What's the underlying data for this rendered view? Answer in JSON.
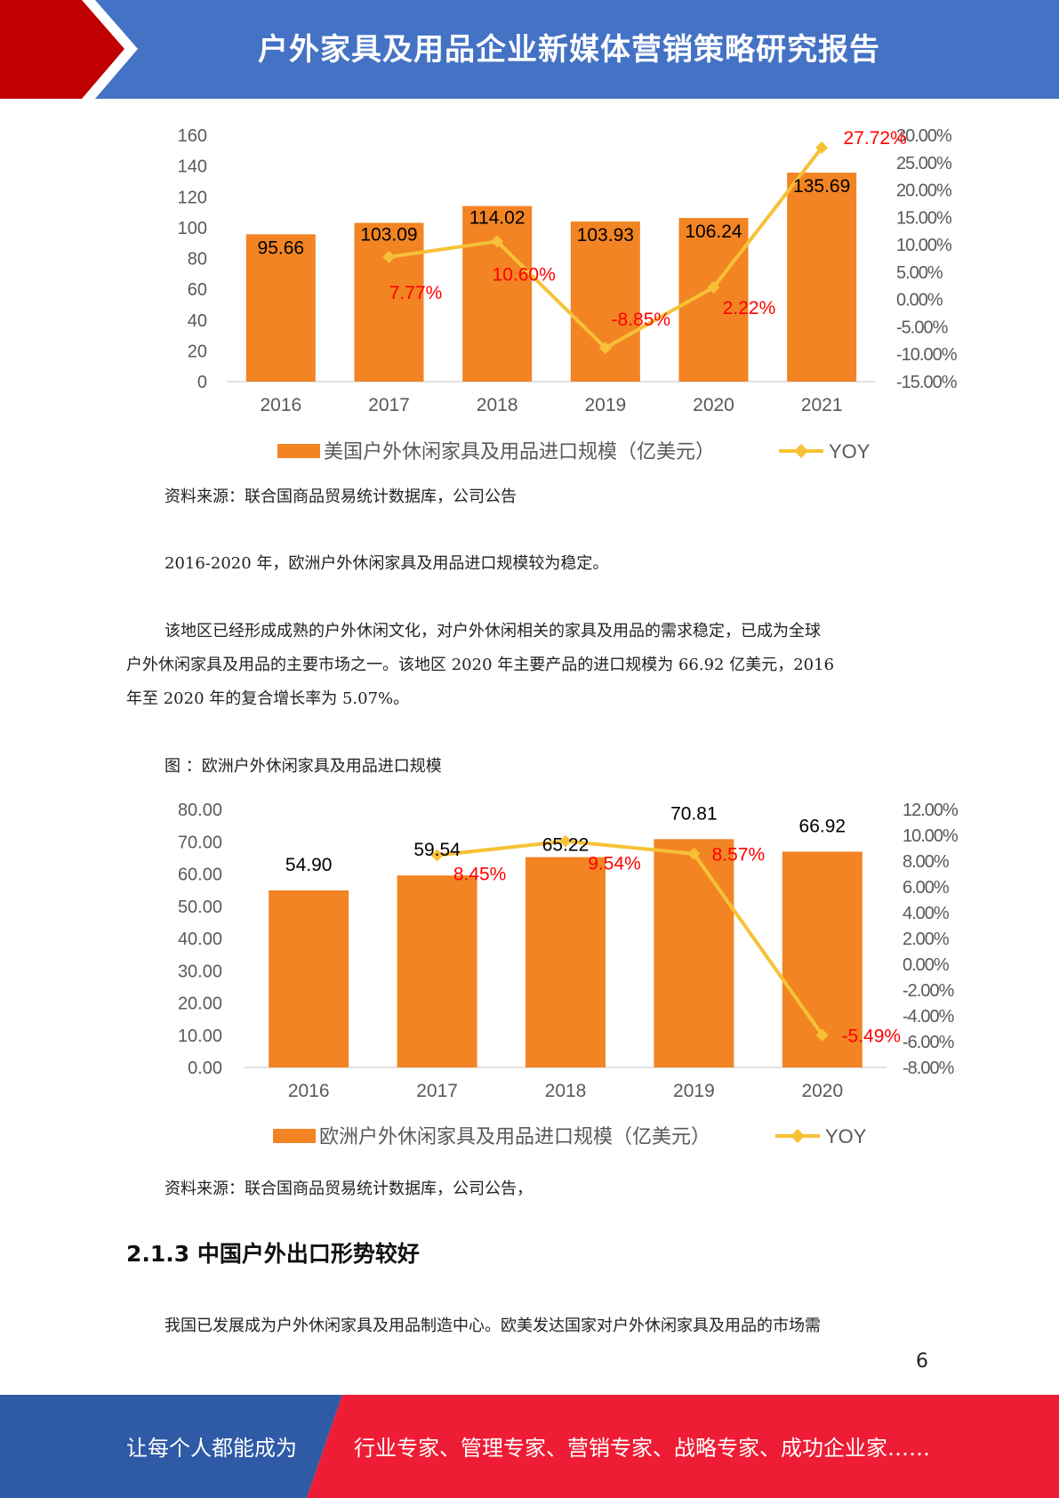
{
  "header": {
    "title": "户外家具及用品企业新媒体营销策略研究报告"
  },
  "colors": {
    "header_blue": "#4472c4",
    "header_red": "#c00000",
    "bar": "#f28424",
    "line": "#f7c137",
    "label_red": "#ff0000",
    "footer_blue": "#2e5aa6",
    "footer_red": "#ee1c35"
  },
  "chart_data": [
    {
      "type": "bar",
      "categories": [
        "2016",
        "2017",
        "2018",
        "2019",
        "2020",
        "2021"
      ],
      "series": [
        {
          "name": "美国户外休闲家具及用品进口规模（亿美元）",
          "values": [
            95.66,
            103.09,
            114.02,
            103.93,
            106.24,
            135.69
          ],
          "axis": "left"
        },
        {
          "name": "YOY",
          "type": "line",
          "values": [
            null,
            7.77,
            10.6,
            -8.85,
            2.22,
            27.72
          ],
          "axis": "right",
          "unit": "%"
        }
      ],
      "bar_labels": [
        "95.66",
        "103.09",
        "114.02",
        "103.93",
        "106.24",
        "135.69"
      ],
      "line_labels": [
        "",
        "7.77%",
        "10.60%",
        "-8.85%",
        "2.22%",
        "27.72%"
      ],
      "left_ticks": [
        "0",
        "20",
        "40",
        "60",
        "80",
        "100",
        "120",
        "140",
        "160"
      ],
      "right_ticks": [
        "-15.00%",
        "-10.00%",
        "-5.00%",
        "0.00%",
        "5.00%",
        "10.00%",
        "15.00%",
        "20.00%",
        "25.00%",
        "30.00%"
      ],
      "ylim": [
        0,
        160
      ],
      "y2lim": [
        -15,
        30
      ],
      "legend_position": "bottom",
      "grid": false
    },
    {
      "type": "bar",
      "categories": [
        "2016",
        "2017",
        "2018",
        "2019",
        "2020"
      ],
      "series": [
        {
          "name": "欧洲户外休闲家具及用品进口规模（亿美元）",
          "values": [
            54.9,
            59.54,
            65.22,
            70.81,
            66.92
          ],
          "axis": "left"
        },
        {
          "name": "YOY",
          "type": "line",
          "values": [
            null,
            8.45,
            9.54,
            8.57,
            -5.49
          ],
          "axis": "right",
          "unit": "%"
        }
      ],
      "bar_labels": [
        "54.90",
        "59.54",
        "65.22",
        "70.81",
        "66.92"
      ],
      "line_labels": [
        "",
        "8.45%",
        "9.54%",
        "8.57%",
        "-5.49%"
      ],
      "left_ticks": [
        "0.00",
        "10.00",
        "20.00",
        "30.00",
        "40.00",
        "50.00",
        "60.00",
        "70.00",
        "80.00"
      ],
      "right_ticks": [
        "-8.00%",
        "-6.00%",
        "-4.00%",
        "-2.00%",
        "0.00%",
        "2.00%",
        "4.00%",
        "6.00%",
        "8.00%",
        "10.00%",
        "12.00%"
      ],
      "ylim": [
        0,
        80
      ],
      "y2lim": [
        -8,
        12
      ],
      "legend_position": "bottom",
      "grid": false
    }
  ],
  "body": {
    "source1": "资料来源：联合国商品贸易统计数据库，公司公告",
    "summary": "2016-2020 年，欧洲户外休闲家具及用品进口规模较为稳定。",
    "para1_line1": "该地区已经形成成熟的户外休闲文化，对户外休闲相关的家具及用品的需求稳定，已成为全球",
    "para1_line2": "户外休闲家具及用品的主要市场之一。该地区 2020 年主要产品的进口规模为 66.92 亿美元，2016",
    "para1_line3": "年至 2020 年的复合增长率为 5.07%。",
    "figure_caption": "图 ：欧洲户外休闲家具及用品进口规模",
    "source2": "资料来源：联合国商品贸易统计数据库，公司公告，",
    "section_heading": "2.1.3 中国户外出口形势较好",
    "para2": "我国已发展成为户外休闲家具及用品制造中心。欧美发达国家对户外休闲家具及用品的市场需"
  },
  "page_number": "6",
  "footer": {
    "left_text": "让每个人都能成为",
    "right_text": "行业专家、管理专家、营销专家、战略专家、成功企业家……"
  }
}
